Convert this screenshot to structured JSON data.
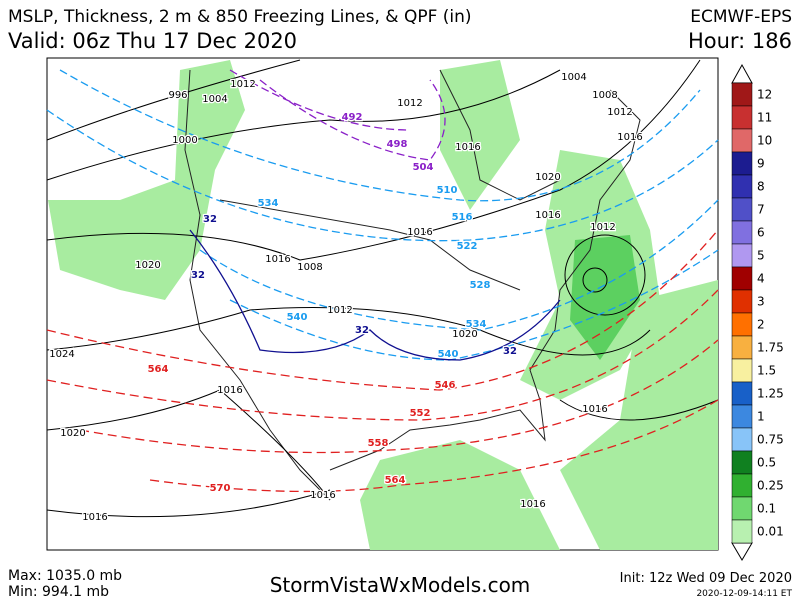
{
  "header": {
    "title": "MSLP, Thickness, 2 m & 850 Freezing Lines, & QPF (in)",
    "model": "ECMWF-EPS",
    "valid": "Valid: 06z Thu 17 Dec 2020",
    "hour": "Hour: 186"
  },
  "footer": {
    "max": "Max: 1035.0 mb",
    "min": "Min: 994.1 mb",
    "site": "StormVistaWxModels.com",
    "init": "Init: 12z Wed 09 Dec 2020",
    "stamp": "2020-12-09-14:11 ET"
  },
  "legend": {
    "labels": [
      "12",
      "11",
      "10",
      "9",
      "8",
      "7",
      "6",
      "5",
      "4",
      "3",
      "2",
      "1.75",
      "1.5",
      "1.25",
      "1",
      "0.75",
      "0.5",
      "0.25",
      "0.1",
      "0.01"
    ],
    "colors": [
      "#a01818",
      "#c83030",
      "#e06868",
      "#1c1c90",
      "#3030b0",
      "#5050c8",
      "#8070e0",
      "#b098f0",
      "#a00000",
      "#e03000",
      "#ff7000",
      "#f8b040",
      "#f8f0a0",
      "#1860c8",
      "#3c88e0",
      "#88c4f8",
      "#108020",
      "#30b030",
      "#70d870",
      "#b8f0b0"
    ]
  },
  "contour_labels": [
    "996",
    "1004",
    "1012",
    "1000",
    "1004",
    "1008",
    "1012",
    "1016",
    "1020",
    "1016",
    "1012",
    "1016",
    "1016",
    "1008",
    "1020",
    "1012",
    "1020",
    "1024",
    "1016",
    "1020",
    "1016",
    "1016",
    "1016",
    "1016",
    "1016",
    "1012",
    "492",
    "498",
    "504",
    "510",
    "516",
    "522",
    "528",
    "534",
    "540",
    "540",
    "534",
    "32",
    "32",
    "32",
    "32",
    "564",
    "546",
    "552",
    "558",
    "564",
    "570"
  ]
}
